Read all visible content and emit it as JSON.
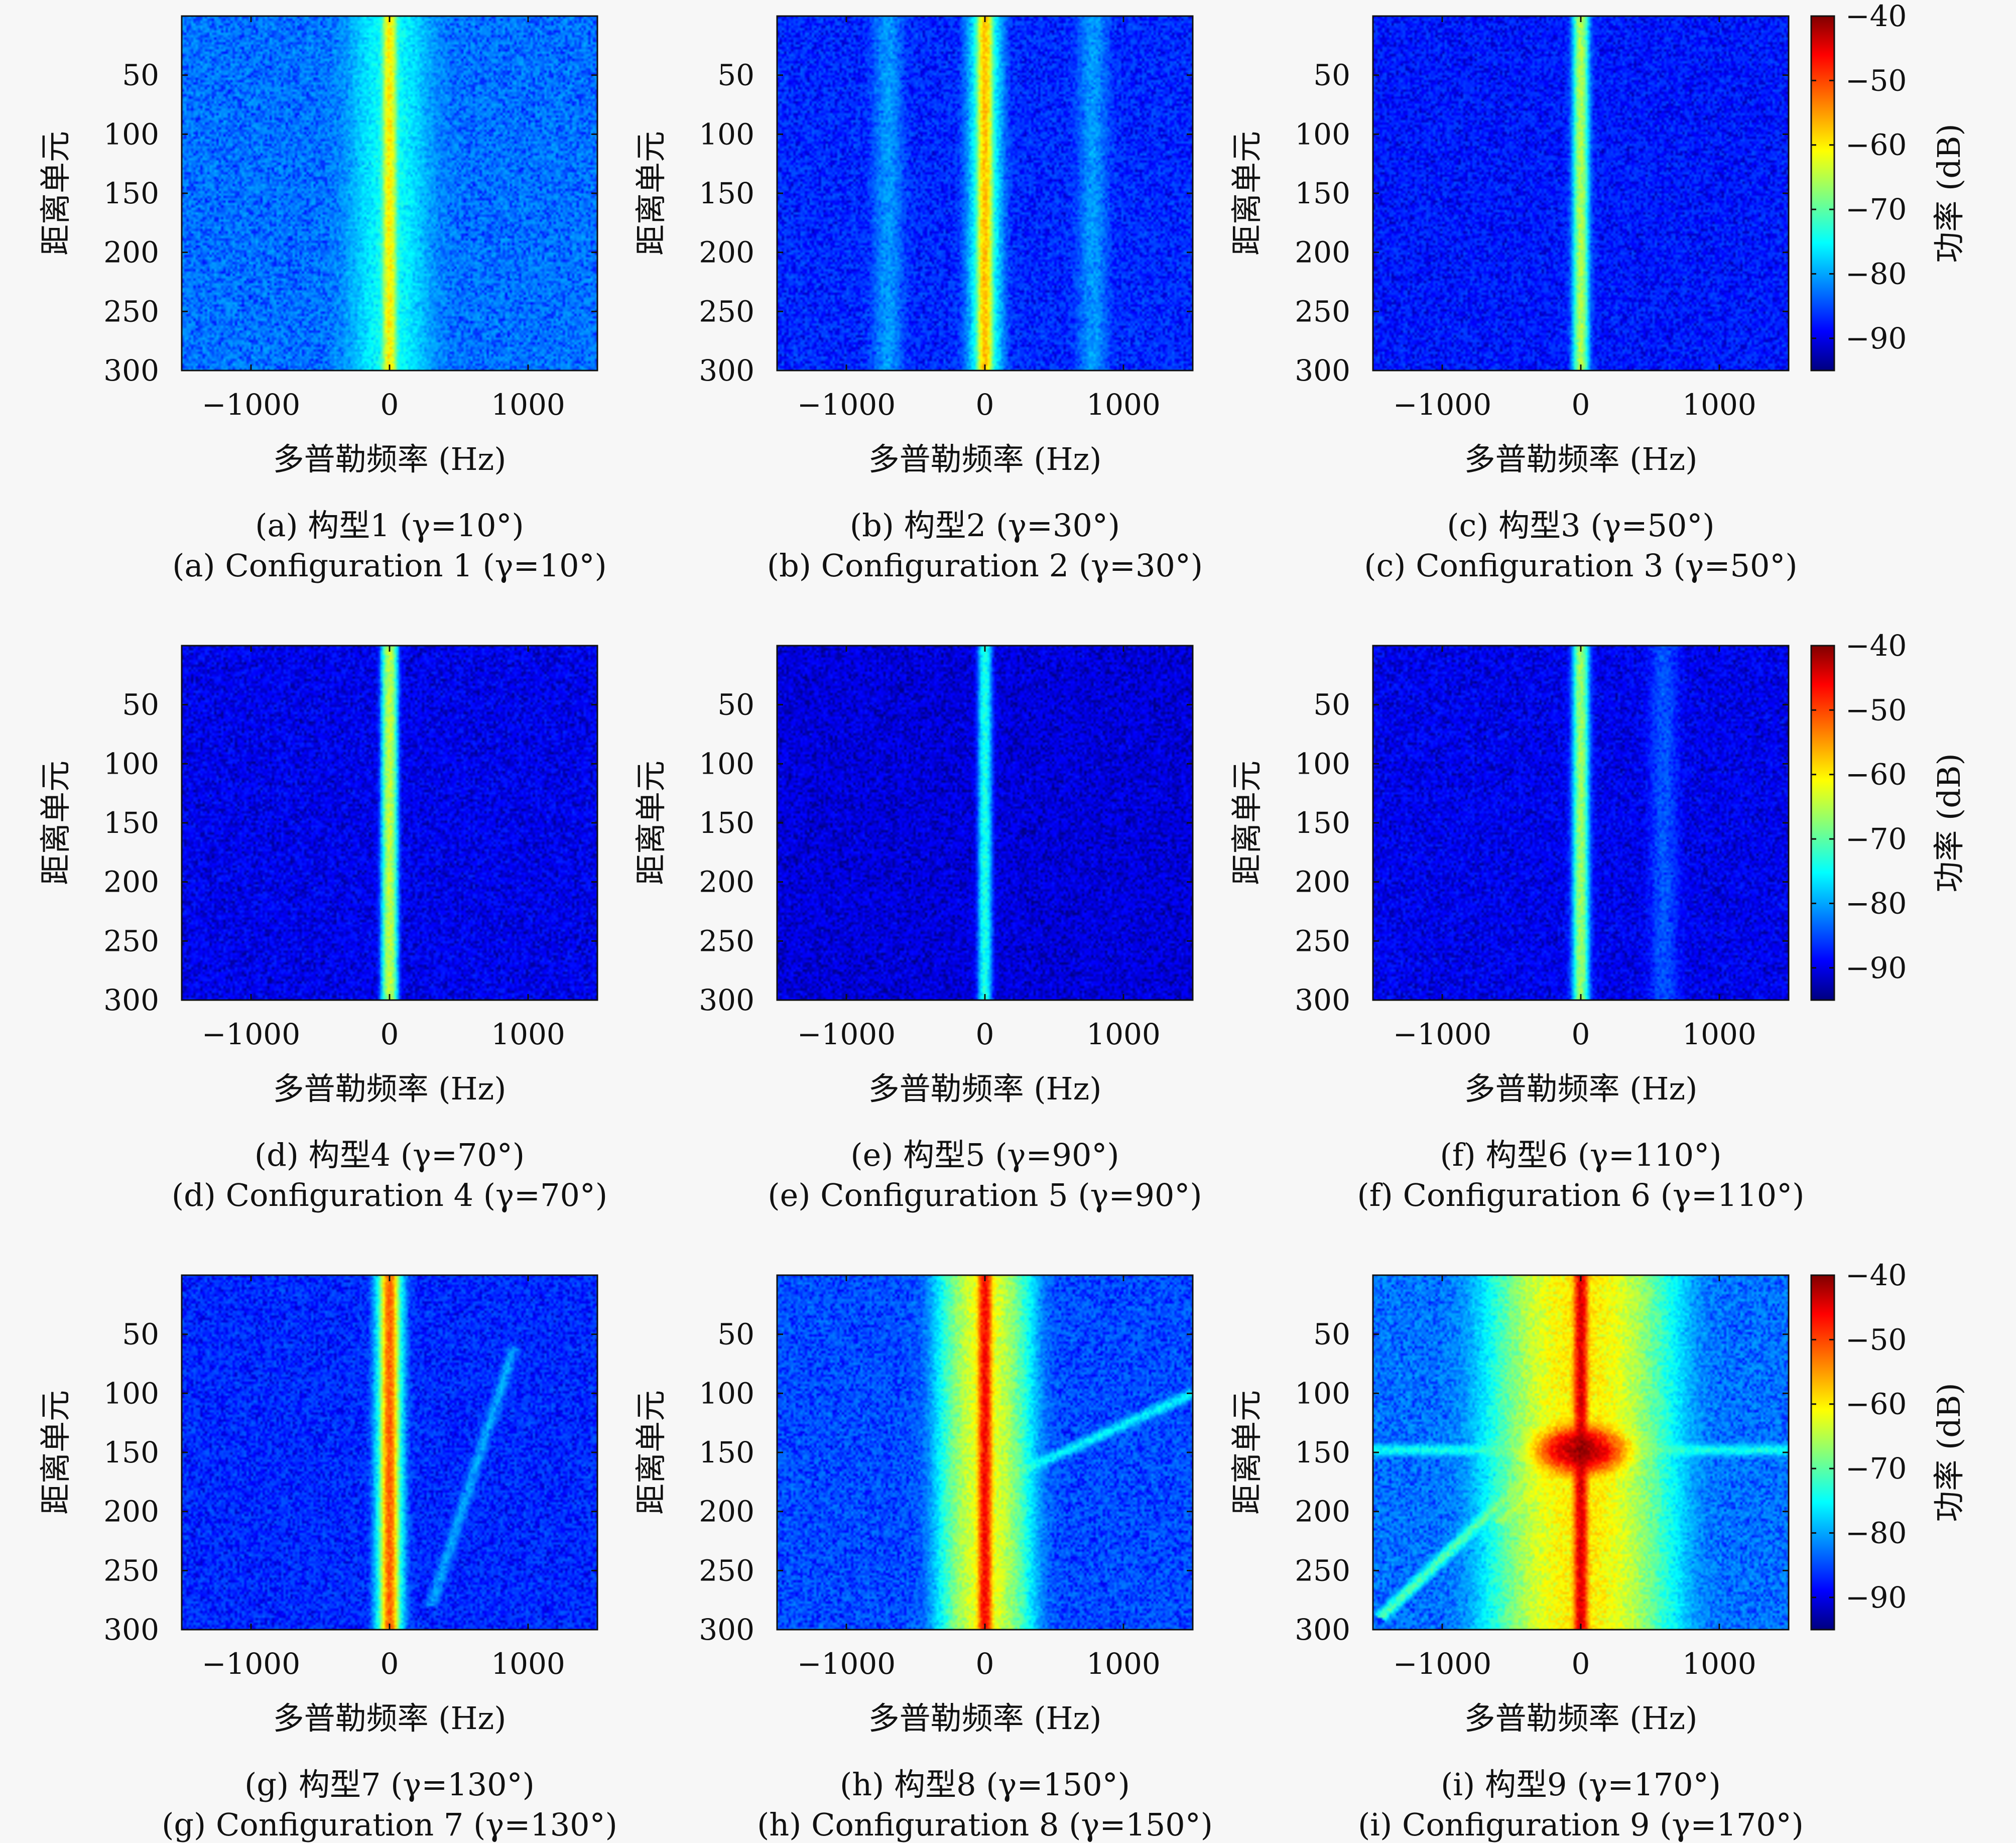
{
  "figure": {
    "panels": [
      {
        "caption_cn": "(a) 构型1 (γ=10°)",
        "caption_en": "(a) Configuration 1 (γ=10°)"
      },
      {
        "caption_cn": "(b) 构型2 (γ=30°)",
        "caption_en": "(b) Configuration 2 (γ=30°)"
      },
      {
        "caption_cn": "(c) 构型3 (γ=50°)",
        "caption_en": "(c) Configuration 3 (γ=50°)"
      },
      {
        "caption_cn": "(d) 构型4 (γ=70°)",
        "caption_en": "(d) Configuration 4 (γ=70°)"
      },
      {
        "caption_cn": "(e) 构型5 (γ=90°)",
        "caption_en": "(e) Configuration 5 (γ=90°)"
      },
      {
        "caption_cn": "(f) 构型6 (γ=110°)",
        "caption_en": "(f) Configuration 6 (γ=110°)"
      },
      {
        "caption_cn": "(g) 构型7 (γ=130°)",
        "caption_en": "(g) Configuration 7 (γ=130°)"
      },
      {
        "caption_cn": "(h) 构型8 (γ=150°)",
        "caption_en": "(h) Configuration 8 (γ=150°)"
      },
      {
        "caption_cn": "(i) 构型9 (γ=170°)",
        "caption_en": "(i) Configuration 9 (γ=170°)"
      }
    ],
    "xlabel": "多普勒频率 (Hz)",
    "ylabel": "距离单元",
    "colorbar_label": "功率 (dB)"
  },
  "chart_data": [
    {
      "type": "heatmap",
      "panel": "a",
      "title": "(a) 构型1 (γ=10°)",
      "xlim": [
        -1500,
        1500
      ],
      "ylim": [
        300,
        0
      ],
      "xticks": [
        -1000,
        0,
        1000
      ],
      "yticks": [
        50,
        100,
        150,
        200,
        250,
        300
      ],
      "colormap": "jet",
      "clim": [
        -95,
        -40
      ],
      "background_dB": -82,
      "center_line": {
        "x_hz": 0,
        "peak_dB": -60,
        "halo_width_hz": 300
      },
      "extra_features": []
    },
    {
      "type": "heatmap",
      "panel": "b",
      "title": "(b) 构型2 (γ=30°)",
      "xlim": [
        -1500,
        1500
      ],
      "ylim": [
        300,
        0
      ],
      "xticks": [
        -1000,
        0,
        1000
      ],
      "yticks": [
        50,
        100,
        150,
        200,
        250,
        300
      ],
      "colormap": "jet",
      "clim": [
        -95,
        -40
      ],
      "background_dB": -86,
      "center_line": {
        "x_hz": 0,
        "peak_dB": -57,
        "halo_width_hz": 120
      },
      "extra_features": [
        {
          "kind": "band",
          "x_hz": -700,
          "level_dB": -80
        },
        {
          "kind": "band",
          "x_hz": 780,
          "level_dB": -80
        }
      ]
    },
    {
      "type": "heatmap",
      "panel": "c",
      "title": "(c) 构型3 (γ=50°)",
      "xlim": [
        -1500,
        1500
      ],
      "ylim": [
        300,
        0
      ],
      "xticks": [
        -1000,
        0,
        1000
      ],
      "yticks": [
        50,
        100,
        150,
        200,
        250,
        300
      ],
      "colormap": "jet",
      "clim": [
        -95,
        -40
      ],
      "background_dB": -87,
      "center_line": {
        "x_hz": 0,
        "peak_dB": -65,
        "halo_width_hz": 80
      },
      "extra_features": []
    },
    {
      "type": "heatmap",
      "panel": "d",
      "title": "(d) 构型4 (γ=70°)",
      "xlim": [
        -1500,
        1500
      ],
      "ylim": [
        300,
        0
      ],
      "xticks": [
        -1000,
        0,
        1000
      ],
      "yticks": [
        50,
        100,
        150,
        200,
        250,
        300
      ],
      "colormap": "jet",
      "clim": [
        -95,
        -40
      ],
      "background_dB": -89,
      "center_line": {
        "x_hz": 0,
        "peak_dB": -64,
        "halo_width_hz": 60
      },
      "extra_features": []
    },
    {
      "type": "heatmap",
      "panel": "e",
      "title": "(e) 构型5 (γ=90°)",
      "xlim": [
        -1500,
        1500
      ],
      "ylim": [
        300,
        0
      ],
      "xticks": [
        -1000,
        0,
        1000
      ],
      "yticks": [
        50,
        100,
        150,
        200,
        250,
        300
      ],
      "colormap": "jet",
      "clim": [
        -95,
        -40
      ],
      "background_dB": -90,
      "center_line": {
        "x_hz": 0,
        "peak_dB": -73,
        "halo_width_hz": 70
      },
      "extra_features": []
    },
    {
      "type": "heatmap",
      "panel": "f",
      "title": "(f) 构型6 (γ=110°)",
      "xlim": [
        -1500,
        1500
      ],
      "ylim": [
        300,
        0
      ],
      "xticks": [
        -1000,
        0,
        1000
      ],
      "yticks": [
        50,
        100,
        150,
        200,
        250,
        300
      ],
      "colormap": "jet",
      "clim": [
        -95,
        -40
      ],
      "background_dB": -89,
      "center_line": {
        "x_hz": 0,
        "peak_dB": -66,
        "halo_width_hz": 80
      },
      "extra_features": [
        {
          "kind": "band",
          "x_hz": 600,
          "level_dB": -84
        }
      ]
    },
    {
      "type": "heatmap",
      "panel": "g",
      "title": "(g) 构型7 (γ=130°)",
      "xlim": [
        -1500,
        1500
      ],
      "ylim": [
        300,
        0
      ],
      "xticks": [
        -1000,
        0,
        1000
      ],
      "yticks": [
        50,
        100,
        150,
        200,
        250,
        300
      ],
      "colormap": "jet",
      "clim": [
        -95,
        -40
      ],
      "background_dB": -86,
      "center_line": {
        "x_hz": 0,
        "peak_dB": -52,
        "halo_width_hz": 90
      },
      "extra_features": [
        {
          "kind": "streak",
          "from": [
            900,
            60
          ],
          "to": [
            300,
            280
          ],
          "level_dB": -80
        }
      ]
    },
    {
      "type": "heatmap",
      "panel": "h",
      "title": "(h) 构型8 (γ=150°)",
      "xlim": [
        -1500,
        1500
      ],
      "ylim": [
        300,
        0
      ],
      "xticks": [
        -1000,
        0,
        1000
      ],
      "yticks": [
        50,
        100,
        150,
        200,
        250,
        300
      ],
      "colormap": "jet",
      "clim": [
        -95,
        -40
      ],
      "background_dB": -84,
      "center_line": {
        "x_hz": 0,
        "peak_dB": -47,
        "halo_width_hz": 260
      },
      "extra_features": [
        {
          "kind": "streak",
          "from": [
            0,
            180
          ],
          "to": [
            1500,
            100
          ],
          "level_dB": -75
        }
      ]
    },
    {
      "type": "heatmap",
      "panel": "i",
      "title": "(i) 构型9 (γ=170°)",
      "xlim": [
        -1500,
        1500
      ],
      "ylim": [
        300,
        0
      ],
      "xticks": [
        -1000,
        0,
        1000
      ],
      "yticks": [
        50,
        100,
        150,
        200,
        250,
        300
      ],
      "colormap": "jet",
      "clim": [
        -95,
        -40
      ],
      "background_dB": -82,
      "center_line": {
        "x_hz": 0,
        "peak_dB": -45,
        "halo_width_hz": 500
      },
      "extra_features": [
        {
          "kind": "hline",
          "y": 148,
          "from_hz": -1500,
          "to_hz": 1500,
          "level_dB": -74
        },
        {
          "kind": "hot_spot",
          "x_hz": 0,
          "y": 148,
          "level_dB": -42
        },
        {
          "kind": "streak",
          "from": [
            -200,
            150
          ],
          "to": [
            -1450,
            290
          ],
          "level_dB": -70
        },
        {
          "kind": "streak",
          "from": [
            -100,
            160
          ],
          "to": [
            -600,
            210
          ],
          "level_dB": -68
        }
      ]
    }
  ],
  "colorbar": {
    "ticks": [
      -40,
      -50,
      -60,
      -70,
      -80,
      -90
    ],
    "clim": [
      -95,
      -40
    ],
    "label": "功率 (dB)"
  }
}
